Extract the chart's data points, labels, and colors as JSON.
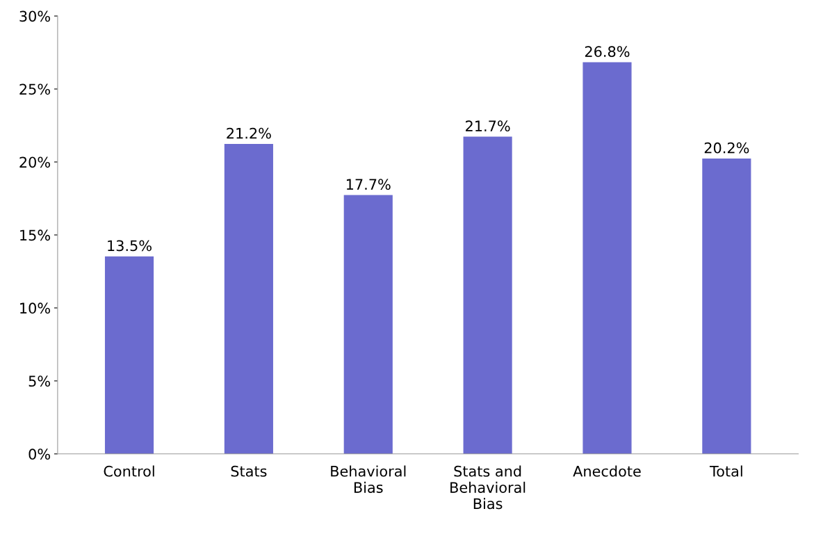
{
  "chart_data": {
    "type": "bar",
    "categories": [
      "Control",
      "Stats",
      "Behavioral\nBias",
      "Stats and\nBehavioral\nBias",
      "Anecdote",
      "Total"
    ],
    "values": [
      13.5,
      21.2,
      17.7,
      21.7,
      26.8,
      20.2
    ],
    "value_labels": [
      "13.5%",
      "21.2%",
      "17.7%",
      "21.7%",
      "26.8%",
      "20.2%"
    ],
    "color": "#6b6bcf",
    "ylim": [
      0,
      30
    ],
    "yticks": [
      {
        "value": 0,
        "label": "0%"
      },
      {
        "value": 5,
        "label": "5%"
      },
      {
        "value": 10,
        "label": "10%"
      },
      {
        "value": 15,
        "label": "15%"
      },
      {
        "value": 20,
        "label": "20%"
      },
      {
        "value": 25,
        "label": "25%"
      },
      {
        "value": 30,
        "label": "30%"
      }
    ],
    "grid": false,
    "legend": false
  }
}
